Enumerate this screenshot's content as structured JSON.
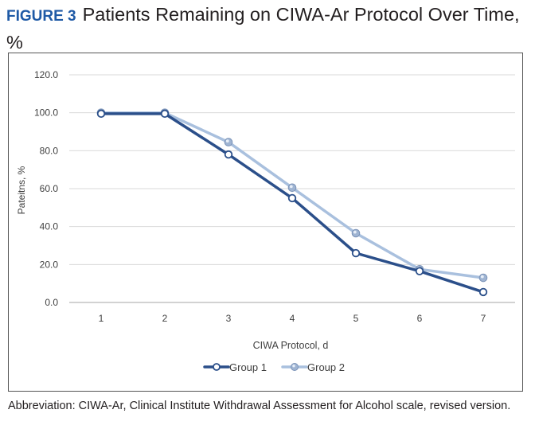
{
  "figure": {
    "label": "FIGURE 3",
    "title": "Patients Remaining on CIWA-Ar Protocol Over Time, %"
  },
  "chart_data": {
    "type": "line",
    "x": [
      1,
      2,
      3,
      4,
      5,
      6,
      7
    ],
    "x_tick_labels": [
      "1",
      "2",
      "3",
      "4",
      "5",
      "6",
      "7"
    ],
    "xlabel": "CIWA Protocol, d",
    "ylabel": "Pateitns, %",
    "ylim": [
      0,
      120
    ],
    "y_ticks": [
      0,
      20,
      40,
      60,
      80,
      100,
      120
    ],
    "y_tick_labels": [
      "0.0",
      "20.0",
      "40.0",
      "60.0",
      "80.0",
      "100.0",
      "120.0"
    ],
    "grid": true,
    "legend_position": "bottom",
    "series": [
      {
        "name": "Group 1",
        "color": "#2b4f8a",
        "values": [
          99.5,
          99.5,
          78,
          55,
          26,
          16.5,
          5.5
        ]
      },
      {
        "name": "Group 2",
        "color": "#a9c0de",
        "values": [
          100,
          100,
          84.5,
          60.5,
          36.5,
          17.5,
          13
        ]
      }
    ]
  },
  "footnote": "Abbreviation: CIWA-Ar, Clinical Institute Withdrawal Assessment for Alcohol scale, revised version."
}
